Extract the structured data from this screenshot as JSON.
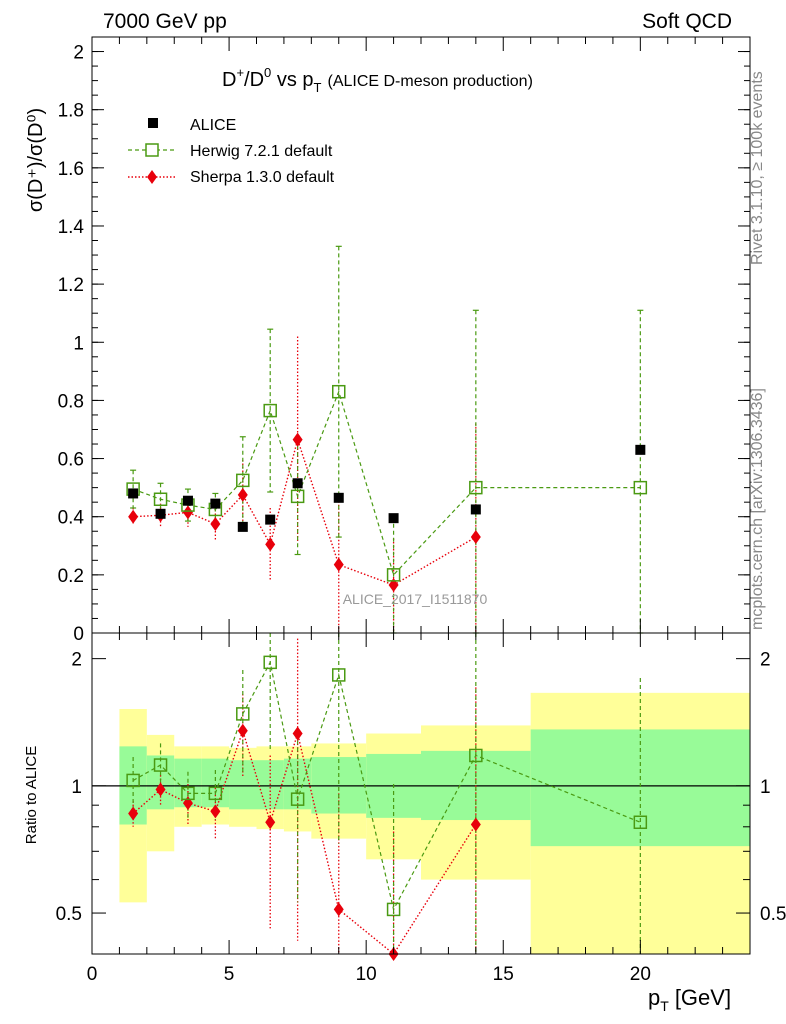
{
  "header": {
    "energy_label": "7000 GeV pp",
    "process_label": "Soft QCD",
    "side_rivet": "Rivet 3.1.10, ≥ 100k events",
    "side_mcplots": "mcplots.cern.ch [arXiv:1306.3436]"
  },
  "chart_data": {
    "type": "scatter",
    "title_main": "D",
    "title_sup1": "+",
    "title_slash": "/D",
    "title_sup2": "0",
    "title_vs": " vs p",
    "title_sub": "T",
    "title_note": "(ALICE D-meson production)",
    "ylabel": "σ(D⁺)/σ(D⁰)",
    "ratio_ylabel": "Ratio to ALICE",
    "xlabel": "p",
    "xlabel_sub": "T",
    "xlabel_unit": "[GeV]",
    "watermark": "ALICE_2017_I1511870",
    "xlim": [
      0,
      24
    ],
    "ylim": [
      0,
      2.05
    ],
    "ratio_ylim": [
      0.4,
      2.3
    ],
    "x_ticks": [
      "0",
      "5",
      "10",
      "15",
      "20"
    ],
    "y_ticks": [
      "0",
      "0.2",
      "0.4",
      "0.6",
      "0.8",
      "1",
      "1.2",
      "1.4",
      "1.6",
      "1.8",
      "2"
    ],
    "ratio_y_ticks": [
      "0.5",
      "1",
      "2"
    ],
    "bins": [
      [
        1,
        2
      ],
      [
        2,
        3
      ],
      [
        3,
        4
      ],
      [
        4,
        5
      ],
      [
        5,
        6
      ],
      [
        6,
        7
      ],
      [
        7,
        8
      ],
      [
        8,
        10
      ],
      [
        10,
        12
      ],
      [
        12,
        16
      ],
      [
        16,
        24
      ]
    ],
    "series": [
      {
        "name": "ALICE",
        "color": "#000000",
        "x": [
          1.5,
          2.5,
          3.5,
          4.5,
          5.5,
          6.5,
          7.5,
          9,
          11,
          14,
          20
        ],
        "y": [
          0.48,
          0.41,
          0.455,
          0.445,
          0.365,
          0.39,
          0.515,
          0.465,
          0.395,
          0.425,
          0.63
        ]
      },
      {
        "name": "Herwig 7.2.1 default",
        "color": "#4a9a12",
        "x": [
          1.5,
          2.5,
          3.5,
          4.5,
          5.5,
          6.5,
          7.5,
          9,
          11,
          14,
          20
        ],
        "y": [
          0.495,
          0.46,
          0.44,
          0.425,
          0.525,
          0.765,
          0.47,
          0.83,
          0.2,
          0.5,
          0.5
        ],
        "err": [
          0.065,
          0.055,
          0.055,
          0.055,
          0.15,
          0.28,
          0.2,
          0.5,
          0.2,
          0.61,
          0.61
        ],
        "ratio": [
          1.03,
          1.12,
          0.96,
          0.96,
          1.48,
          1.96,
          0.93,
          1.83,
          0.51,
          1.18,
          0.82
        ],
        "ratio_err": [
          0.14,
          0.14,
          0.12,
          0.13,
          0.4,
          0.75,
          0.4,
          1.1,
          0.5,
          1.45,
          0.98
        ]
      },
      {
        "name": "Sherpa 1.3.0 default",
        "color": "#e8000b",
        "x": [
          1.5,
          2.5,
          3.5,
          4.5,
          5.5,
          6.5,
          7.5,
          9,
          11,
          14
        ],
        "y": [
          0.4,
          0.405,
          0.415,
          0.375,
          0.475,
          0.305,
          0.665,
          0.235,
          0.165,
          0.33
        ],
        "err": [
          0.03,
          0.04,
          0.05,
          0.06,
          0.12,
          0.125,
          0.355,
          0.23,
          0.16,
          0.39
        ],
        "ratio": [
          0.86,
          0.98,
          0.91,
          0.87,
          1.35,
          0.82,
          1.33,
          0.51,
          0.38,
          0.81
        ],
        "ratio_err": [
          0.06,
          0.08,
          0.1,
          0.12,
          0.3,
          0.36,
          0.9,
          0.45,
          0.4,
          0.9
        ]
      }
    ],
    "alice_band_inner": [
      [
        0.81,
        1.24
      ],
      [
        0.88,
        1.18
      ],
      [
        0.89,
        1.16
      ],
      [
        0.89,
        1.16
      ],
      [
        0.88,
        1.15
      ],
      [
        0.88,
        1.15
      ],
      [
        0.88,
        1.16
      ],
      [
        0.86,
        1.17
      ],
      [
        0.84,
        1.19
      ],
      [
        0.83,
        1.21
      ],
      [
        0.72,
        1.36
      ]
    ],
    "alice_band_outer": [
      [
        0.53,
        1.52
      ],
      [
        0.7,
        1.32
      ],
      [
        0.8,
        1.24
      ],
      [
        0.81,
        1.24
      ],
      [
        0.8,
        1.23
      ],
      [
        0.79,
        1.24
      ],
      [
        0.78,
        1.24
      ],
      [
        0.75,
        1.26
      ],
      [
        0.67,
        1.33
      ],
      [
        0.6,
        1.39
      ],
      [
        0.36,
        1.66
      ]
    ],
    "band_colors": {
      "inner": "#98fb98",
      "outer": "#ffff99"
    }
  }
}
